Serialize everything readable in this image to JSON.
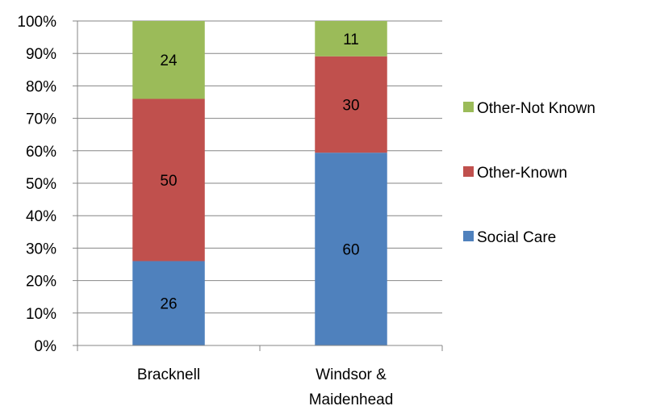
{
  "chart_data": {
    "type": "bar",
    "stacked": true,
    "percent": true,
    "categories": [
      [
        "Bracknell"
      ],
      [
        "Windsor &",
        "Maidenhead"
      ]
    ],
    "series": [
      {
        "name": "Social Care",
        "values": [
          26,
          60
        ],
        "color": "#4f81bd"
      },
      {
        "name": "Other-Known",
        "values": [
          50,
          30
        ],
        "color": "#c0504d"
      },
      {
        "name": "Other-Not Known",
        "values": [
          24,
          11
        ],
        "color": "#9bbb59"
      }
    ],
    "ylim": [
      0,
      100
    ],
    "yticks": [
      "0%",
      "10%",
      "20%",
      "30%",
      "40%",
      "50%",
      "60%",
      "70%",
      "80%",
      "90%",
      "100%"
    ],
    "grid": true,
    "legend": "right",
    "legend_order": [
      "Other-Not Known",
      "Other-Known",
      "Social Care"
    ],
    "title": "",
    "xlabel": "",
    "ylabel": ""
  }
}
